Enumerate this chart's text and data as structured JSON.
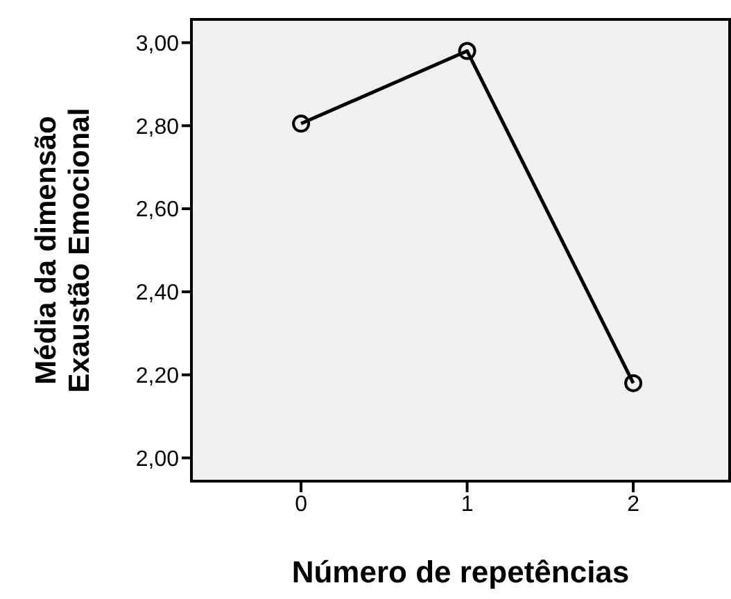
{
  "chart_data": {
    "type": "line",
    "xlabel": "Número de repetências",
    "ylabel": "Média da dimensão\nExaustão Emocional",
    "categories": [
      "0",
      "1",
      "2"
    ],
    "series": [
      {
        "color": "#000000",
        "values": [
          2.805,
          2.98,
          2.18
        ]
      }
    ],
    "ylim": [
      1.944,
      3.056
    ],
    "yticks": [
      {
        "value": 2,
        "label": "2,00"
      },
      {
        "value": 2.2,
        "label": "2,20"
      },
      {
        "value": 2.4,
        "label": "2,40"
      },
      {
        "value": 2.6,
        "label": "2,60"
      },
      {
        "value": 2.8,
        "label": "2,80"
      },
      {
        "value": 3,
        "label": "3,00"
      }
    ],
    "marker": "circle",
    "line_style": "solid",
    "grid": false
  }
}
